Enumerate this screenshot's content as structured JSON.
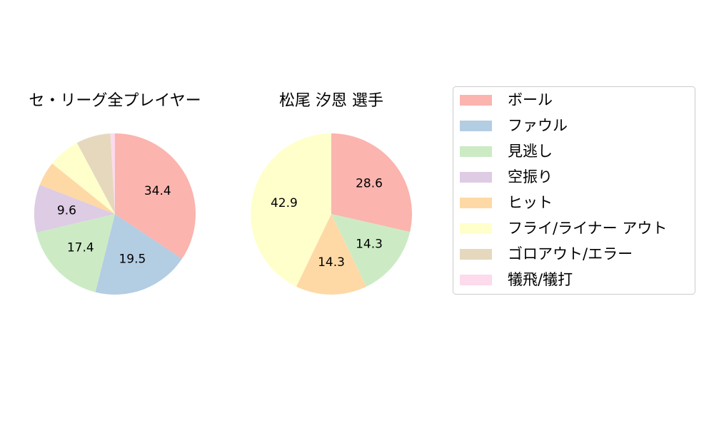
{
  "chart_data": [
    {
      "type": "pie",
      "title": "セ・リーグ全プレイヤー",
      "categories": [
        "ボール",
        "ファウル",
        "見逃し",
        "空振り",
        "ヒット",
        "フライ/ライナー アウト",
        "ゴロアウト/エラー",
        "犠飛/犠打"
      ],
      "values": [
        34.4,
        19.5,
        17.4,
        9.6,
        4.9,
        6.4,
        6.9,
        0.9
      ],
      "labels": [
        "34.4",
        "19.5",
        "17.4",
        "9.6",
        "",
        "",
        "",
        ""
      ]
    },
    {
      "type": "pie",
      "title": "松尾 汐恩  選手",
      "categories": [
        "ボール",
        "ファウル",
        "見逃し",
        "空振り",
        "ヒット",
        "フライ/ライナー アウト",
        "ゴロアウト/エラー",
        "犠飛/犠打"
      ],
      "values": [
        28.6,
        0,
        14.3,
        0,
        14.3,
        42.9,
        0,
        0
      ],
      "labels": [
        "28.6",
        "",
        "14.3",
        "",
        "14.3",
        "42.9",
        "",
        ""
      ]
    }
  ],
  "legend": {
    "placement": "right",
    "items": [
      {
        "label": "ボール",
        "color": "#fbb4ae"
      },
      {
        "label": "ファウル",
        "color": "#b3cde3"
      },
      {
        "label": "見逃し",
        "color": "#ccebc5"
      },
      {
        "label": "空振り",
        "color": "#decbe4"
      },
      {
        "label": "ヒット",
        "color": "#fed9a6"
      },
      {
        "label": "フライ/ライナー アウト",
        "color": "#ffffcc"
      },
      {
        "label": "ゴロアウト/エラー",
        "color": "#e5d8bd"
      },
      {
        "label": "犠飛/犠打",
        "color": "#fddaec"
      }
    ]
  }
}
